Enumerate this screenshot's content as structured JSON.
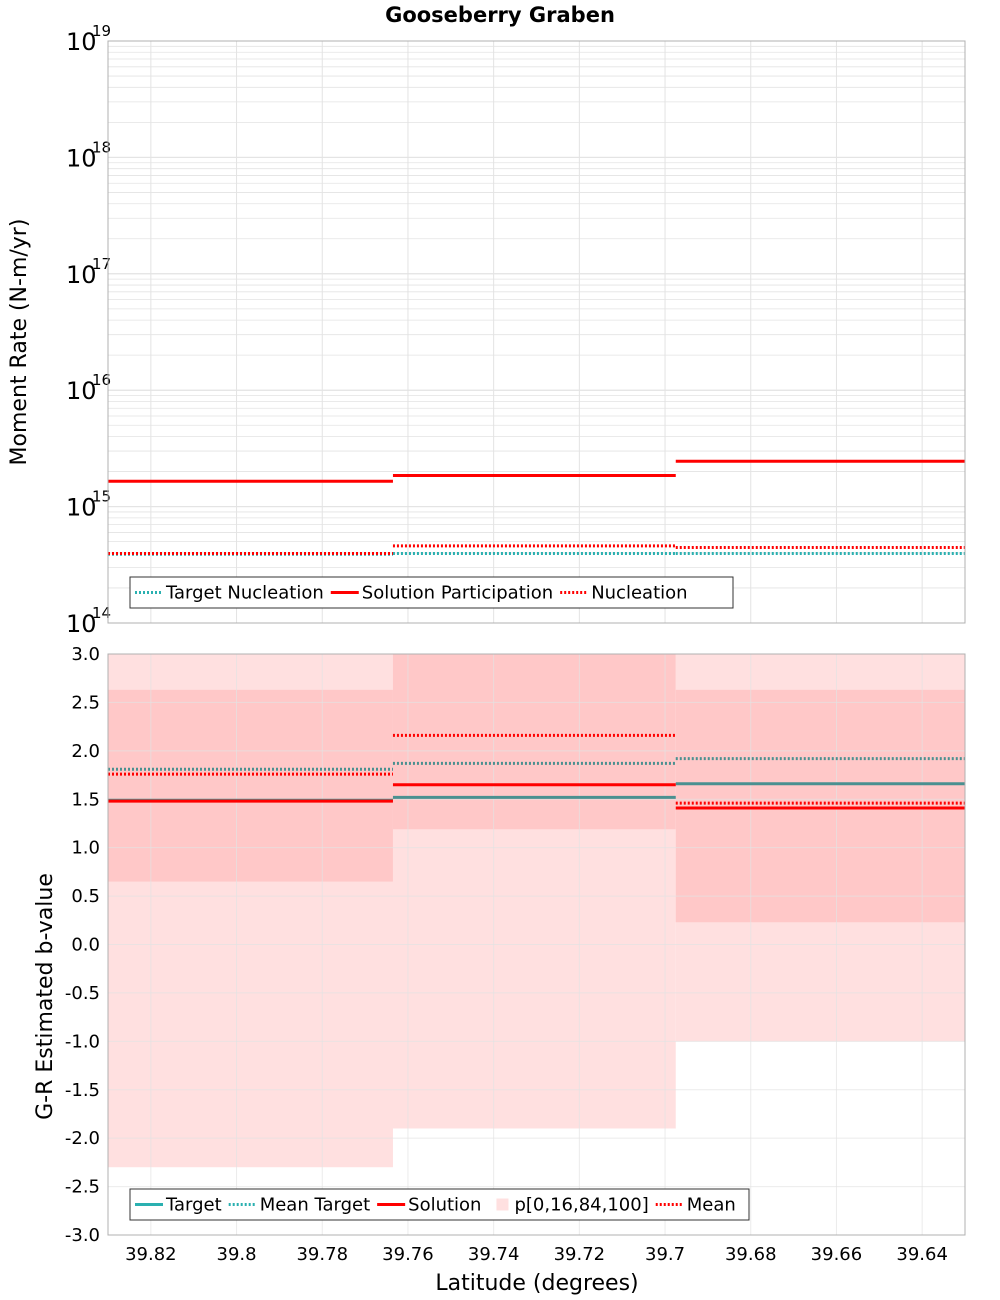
{
  "title": "Gooseberry Graben",
  "x_axis": {
    "label": "Latitude (degrees)",
    "range": [
      39.83,
      39.63
    ],
    "ticks": [
      "39.82",
      "39.8",
      "39.78",
      "39.76",
      "39.74",
      "39.72",
      "39.7",
      "39.68",
      "39.66",
      "39.64"
    ],
    "tick_values": [
      39.82,
      39.8,
      39.78,
      39.76,
      39.74,
      39.72,
      39.7,
      39.68,
      39.66,
      39.64
    ]
  },
  "colors": {
    "target": "#2ab0b0",
    "solution": "#ff0000",
    "nucleation": "#ff0000",
    "band_outer": "#ffe0e0",
    "band_inner": "#ffc8c8",
    "grid": "#e3e3e3"
  },
  "chart_data": [
    {
      "type": "line",
      "panel": "top",
      "ylabel": "Moment Rate (N-m/yr)",
      "yscale": "log",
      "ylim": [
        100000000000000.0,
        1e+19
      ],
      "y_ticks": [
        {
          "base": "10",
          "exp": "14",
          "value": 100000000000000.0
        },
        {
          "base": "10",
          "exp": "15",
          "value": 1000000000000000.0
        },
        {
          "base": "10",
          "exp": "16",
          "value": 1e+16
        },
        {
          "base": "10",
          "exp": "17",
          "value": 1e+17
        },
        {
          "base": "10",
          "exp": "18",
          "value": 1e+18
        },
        {
          "base": "10",
          "exp": "19",
          "value": 1e+19
        }
      ],
      "bins": [
        [
          39.83,
          39.7635
        ],
        [
          39.7635,
          39.6975
        ],
        [
          39.6975,
          39.63
        ]
      ],
      "series": [
        {
          "name": "Target Nucleation",
          "style": "dotted",
          "color": "#2ab0b0",
          "values": [
            390000000000000.0,
            395000000000000.0,
            395000000000000.0
          ]
        },
        {
          "name": "Solution Participation",
          "style": "solid",
          "color": "#ff0000",
          "values": [
            1650000000000000.0,
            1850000000000000.0,
            2450000000000000.0
          ]
        },
        {
          "name": "Nucleation",
          "style": "dotted",
          "color": "#ff0000",
          "values": [
            395000000000000.0,
            460000000000000.0,
            445000000000000.0
          ]
        }
      ],
      "legend": [
        {
          "label": "Target Nucleation",
          "style": "dotted",
          "color": "#2ab0b0"
        },
        {
          "label": "Solution Participation",
          "style": "solid",
          "color": "#ff0000"
        },
        {
          "label": "Nucleation",
          "style": "dotted",
          "color": "#ff0000"
        }
      ],
      "legend_position": "bottom-left"
    },
    {
      "type": "line",
      "panel": "bottom",
      "ylabel": "G-R Estimated b-value",
      "ylim": [
        -3.0,
        3.0
      ],
      "y_ticks": [
        "3.0",
        "2.5",
        "2.0",
        "1.5",
        "1.0",
        "0.5",
        "0.0",
        "-0.5",
        "-1.0",
        "-1.5",
        "-2.0",
        "-2.5",
        "-3.0"
      ],
      "y_tick_values": [
        3.0,
        2.5,
        2.0,
        1.5,
        1.0,
        0.5,
        0.0,
        -0.5,
        -1.0,
        -1.5,
        -2.0,
        -2.5,
        -3.0
      ],
      "bins": [
        [
          39.83,
          39.7635
        ],
        [
          39.7635,
          39.6975
        ],
        [
          39.6975,
          39.63
        ]
      ],
      "band_p0_p100": [
        [
          -2.3,
          3.0
        ],
        [
          -1.9,
          3.0
        ],
        [
          -1.0,
          3.0
        ]
      ],
      "band_p16_p84": [
        [
          0.65,
          2.63
        ],
        [
          1.19,
          3.0
        ],
        [
          0.23,
          2.63
        ]
      ],
      "series": [
        {
          "name": "Target",
          "style": "solid",
          "color": "#4a9090",
          "values": [
            1.49,
            1.52,
            1.66
          ]
        },
        {
          "name": "Mean Target",
          "style": "dotted",
          "color": "#4a9090",
          "values": [
            1.81,
            1.87,
            1.92
          ]
        },
        {
          "name": "Solution",
          "style": "solid",
          "color": "#ff0000",
          "values": [
            1.48,
            1.65,
            1.41
          ]
        },
        {
          "name": "Mean",
          "style": "dotted",
          "color": "#ff0000",
          "values": [
            1.76,
            2.16,
            1.46
          ]
        }
      ],
      "legend": [
        {
          "label": "Target",
          "style": "solid",
          "color": "#2ab0b0"
        },
        {
          "label": "Mean Target",
          "style": "dotted",
          "color": "#2ab0b0"
        },
        {
          "label": "Solution",
          "style": "solid",
          "color": "#ff0000"
        },
        {
          "label": "p[0,16,84,100]",
          "style": "box",
          "color": "#ffe0e0"
        },
        {
          "label": "Mean",
          "style": "dotted",
          "color": "#ff0000"
        }
      ],
      "legend_position": "bottom-left"
    }
  ]
}
